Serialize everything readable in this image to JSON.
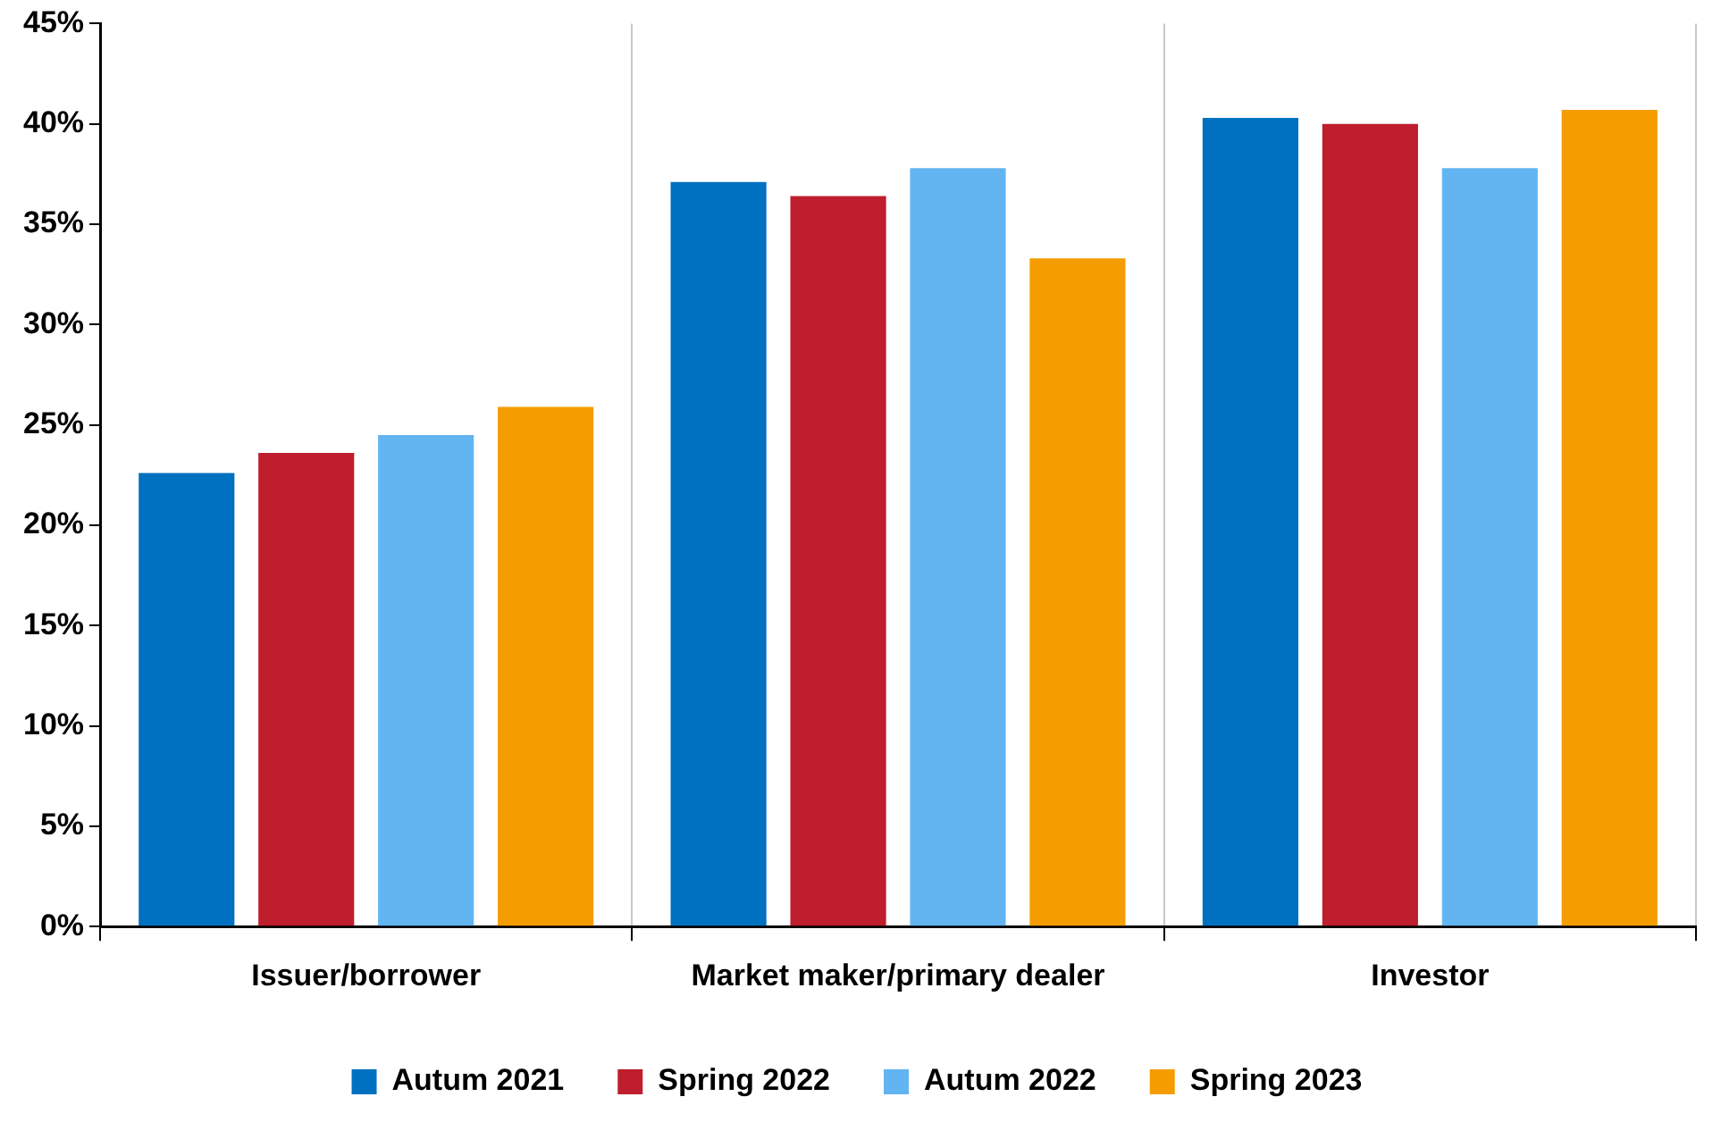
{
  "chart_data": {
    "type": "bar",
    "categories": [
      "Issuer/borrower",
      "Market maker/primary dealer",
      "Investor"
    ],
    "series": [
      {
        "name": "Autum 2021",
        "color": "#0070c0",
        "values": [
          22.6,
          37.1,
          40.3
        ]
      },
      {
        "name": "Spring 2022",
        "color": "#be1e2d",
        "values": [
          23.6,
          36.4,
          40.0
        ]
      },
      {
        "name": "Autum 2022",
        "color": "#63b5f2",
        "values": [
          24.5,
          37.8,
          37.8
        ]
      },
      {
        "name": "Spring 2023",
        "color": "#f59c00",
        "values": [
          25.9,
          33.3,
          40.7
        ]
      }
    ],
    "ylim": [
      0,
      45
    ],
    "yticks": [
      {
        "value": 0,
        "label": "0%"
      },
      {
        "value": 5,
        "label": "5%"
      },
      {
        "value": 10,
        "label": "10%"
      },
      {
        "value": 15,
        "label": "15%"
      },
      {
        "value": 20,
        "label": "20%"
      },
      {
        "value": 25,
        "label": "25%"
      },
      {
        "value": 30,
        "label": "30%"
      },
      {
        "value": 35,
        "label": "35%"
      },
      {
        "value": 40,
        "label": "40%"
      },
      {
        "value": 45,
        "label": "45%"
      }
    ],
    "grid": "x",
    "legend": "bottom"
  }
}
